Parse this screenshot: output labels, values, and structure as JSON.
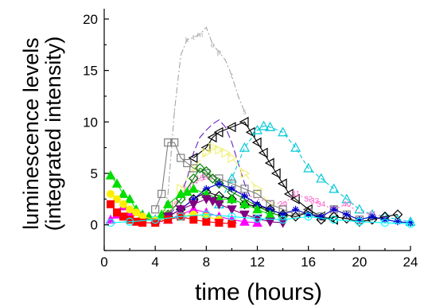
{
  "chart_data": {
    "type": "line",
    "xlabel": "time (hours)",
    "ylabel_lines": [
      "luminescence levels",
      "(integrated intensity)"
    ],
    "xlim": [
      0,
      24
    ],
    "ylim": [
      -2.5,
      21
    ],
    "xticks": [
      0,
      4,
      8,
      12,
      16,
      20,
      24
    ],
    "yticks": [
      0,
      5,
      10,
      15,
      20
    ],
    "grid": false,
    "legend": "none",
    "series": [
      {
        "color": "#a6a6a6",
        "marker": "letter",
        "dash": "8,3,2,3",
        "x": [
          4.5,
          5.0,
          5.5,
          6.0,
          6.5,
          7.0,
          7.5,
          8.0,
          8.5,
          9.0,
          9.5,
          10.0,
          10.5,
          11.0
        ],
        "y": [
          0.5,
          3.0,
          11.0,
          16.5,
          18.0,
          18.2,
          18.5,
          19.2,
          17.5,
          16.8,
          16.0,
          14.5,
          12.5,
          11.0
        ],
        "labels": [
          "",
          "",
          "l",
          "",
          "k",
          "t",
          "m",
          "",
          "o",
          "p",
          "",
          "r",
          "",
          "s"
        ]
      },
      {
        "color": "#6a1fc2",
        "marker": "",
        "dash": "9,4",
        "x": [
          4.5,
          5.5,
          6.5,
          7.0,
          7.5,
          8.0,
          8.5,
          9.0,
          9.5,
          10.0,
          10.5,
          11.0,
          11.5,
          12.0
        ],
        "y": [
          0.3,
          1.5,
          4.5,
          7.0,
          8.5,
          9.2,
          9.8,
          10.2,
          9.5,
          8.0,
          6.0,
          4.0,
          2.5,
          1.5
        ]
      },
      {
        "color": "#000000",
        "marker": "triangle-left",
        "dash": "",
        "x": [
          7.0,
          8.0,
          8.5,
          9.0,
          10.0,
          11.0,
          11.5,
          12.0,
          12.5,
          13.0,
          13.5,
          14.0,
          14.5,
          15.0,
          16.0,
          17.0,
          18.0
        ],
        "y": [
          6.5,
          7.5,
          8.5,
          9.0,
          9.5,
          10.0,
          9.0,
          8.0,
          7.0,
          6.0,
          5.0,
          4.0,
          3.0,
          2.5,
          1.5,
          0.8,
          0.5
        ]
      },
      {
        "color": "#00c8d7",
        "marker": "triangle-up",
        "dash": "5,3",
        "x": [
          9.0,
          10.0,
          11.0,
          12.0,
          12.5,
          13.0,
          14.0,
          15.0,
          16.0,
          17.0,
          18.0,
          19.0,
          20.0,
          21.0,
          22.0,
          23.0,
          24.0
        ],
        "y": [
          2.0,
          4.5,
          7.5,
          9.2,
          9.6,
          9.5,
          9.0,
          7.5,
          5.5,
          4.5,
          3.5,
          2.5,
          1.5,
          1.0,
          0.8,
          0.5,
          0.3
        ]
      },
      {
        "color": "#f0f07a",
        "marker": "triangle-right",
        "dash": "8,4",
        "x": [
          5.0,
          6.0,
          7.0,
          8.0,
          8.5,
          9.0,
          9.5,
          10.0,
          11.0,
          12.0,
          13.0
        ],
        "y": [
          1.0,
          3.5,
          5.5,
          7.0,
          7.5,
          7.3,
          7.0,
          6.5,
          5.0,
          3.5,
          2.0
        ]
      },
      {
        "color": "#ff66cc",
        "marker": "number",
        "dash": "2,3",
        "x": [
          5.0,
          5.5,
          6.0,
          6.5,
          7.0,
          7.5,
          8.0,
          8.5,
          9.0,
          10.0,
          11.0,
          12.0,
          14.0,
          15.0,
          16.0,
          16.5,
          17.0,
          18.0,
          19.0,
          20.0,
          21.0,
          22.0
        ],
        "y": [
          1.0,
          2.0,
          2.8,
          3.5,
          4.2,
          4.5,
          4.6,
          4.4,
          4.0,
          3.5,
          3.0,
          2.5,
          2.0,
          3.0,
          2.5,
          2.3,
          2.0,
          1.5,
          2.0,
          1.2,
          1.0,
          0.8
        ],
        "labels": [
          "",
          "12",
          "",
          "13",
          "14",
          "15",
          "16",
          "",
          "",
          "",
          "",
          "",
          "29",
          "31",
          "32",
          "33",
          "34",
          "35",
          "40",
          "",
          "41",
          ""
        ]
      },
      {
        "color": "#808080",
        "marker": "square",
        "dash": "",
        "x": [
          4.0,
          4.5,
          5.0,
          5.5,
          6.0,
          6.5,
          7.0,
          8.0,
          9.0,
          10.0,
          11.0,
          12.0,
          13.0,
          14.0,
          15.0,
          16.0,
          17.0,
          18.0,
          19.0,
          20.0
        ],
        "y": [
          1.5,
          3.0,
          8.0,
          8.0,
          6.5,
          6.0,
          5.5,
          5.0,
          4.5,
          4.0,
          3.5,
          3.0,
          2.0,
          1.5,
          1.0,
          1.2,
          0.8,
          1.5,
          1.0,
          0.5
        ]
      },
      {
        "color": "#008000",
        "marker": "diamond",
        "dash": "",
        "x": [
          5.0,
          6.0,
          7.0,
          7.5,
          8.0,
          8.5,
          9.0,
          10.0,
          11.0,
          12.0,
          13.0,
          14.0
        ],
        "y": [
          1.0,
          2.5,
          4.5,
          5.5,
          5.2,
          4.5,
          4.0,
          3.2,
          2.5,
          1.8,
          1.2,
          0.8
        ]
      },
      {
        "color": "#000000",
        "marker": "diamond",
        "dash": "",
        "x": [
          5.0,
          6.0,
          7.0,
          8.0,
          9.0,
          10.0,
          11.0,
          12.0,
          13.0,
          14.0,
          15.0,
          16.0,
          17.0,
          18.0,
          19.0,
          20.0,
          21.0,
          22.0,
          23.0
        ],
        "y": [
          0.8,
          1.5,
          2.5,
          3.2,
          2.8,
          2.5,
          2.0,
          1.8,
          1.5,
          1.0,
          0.8,
          1.2,
          0.5,
          0.8,
          0.6,
          0.3,
          0.5,
          0.8,
          1.0
        ]
      },
      {
        "color": "#0000cc",
        "marker": "star",
        "dash": "",
        "x": [
          4.0,
          5.0,
          6.0,
          7.0,
          8.0,
          9.0,
          10.0,
          11.0,
          12.0,
          13.0,
          14.0,
          15.0,
          16.0,
          17.0,
          18.0,
          19.0,
          20.0,
          21.0,
          22.0,
          23.0,
          24.0
        ],
        "y": [
          0.2,
          0.8,
          1.5,
          2.5,
          3.5,
          4.0,
          3.5,
          2.8,
          2.0,
          1.5,
          1.0,
          1.5,
          1.0,
          0.8,
          1.5,
          1.0,
          0.5,
          0.8,
          0.5,
          0.3,
          0.2
        ]
      },
      {
        "color": "#00dd00",
        "marker": "triangle-up-filled",
        "dash": "",
        "x": [
          0.5,
          1.0,
          1.5,
          2.0,
          2.5,
          3.0,
          3.5,
          4.0,
          4.5,
          5.0,
          6.0,
          6.5,
          7.0,
          8.0,
          9.0,
          10.0,
          11.0,
          12.0,
          13.0
        ],
        "y": [
          4.8,
          4.0,
          3.0,
          2.5,
          1.5,
          1.0,
          0.8,
          0.5,
          1.0,
          2.0,
          3.0,
          3.2,
          3.5,
          3.0,
          2.5,
          2.5,
          2.0,
          1.5,
          1.0
        ]
      },
      {
        "color": "#ff00ff",
        "marker": "triangle-up-filled",
        "dash": "",
        "x": [
          0.5,
          1.0,
          1.5,
          2.0,
          3.0,
          4.0,
          5.0,
          6.0,
          7.0,
          8.0,
          9.0,
          10.0,
          11.0,
          12.0
        ],
        "y": [
          0.5,
          1.0,
          1.8,
          1.2,
          0.8,
          0.5,
          0.5,
          1.0,
          1.5,
          1.2,
          0.8,
          0.5,
          0.3,
          0.2
        ]
      },
      {
        "color": "#800080",
        "marker": "triangle-down-filled",
        "dash": "",
        "x": [
          5.0,
          6.0,
          7.0,
          8.0,
          8.5,
          9.0,
          10.0,
          11.0,
          12.0,
          13.0,
          14.0
        ],
        "y": [
          0.8,
          1.5,
          2.0,
          2.5,
          2.3,
          2.0,
          1.5,
          1.0,
          0.6,
          0.3,
          0.2
        ]
      },
      {
        "color": "#ffee00",
        "marker": "circle-filled",
        "dash": "",
        "x": [
          0.5,
          1.0,
          1.5,
          2.0,
          2.5,
          3.0,
          4.0,
          5.0,
          6.0,
          7.0,
          8.0,
          9.0
        ],
        "y": [
          3.0,
          2.5,
          2.0,
          1.5,
          1.2,
          0.8,
          0.5,
          0.5,
          0.8,
          1.0,
          0.8,
          0.5
        ]
      },
      {
        "color": "#ff0000",
        "marker": "square-filled",
        "dash": "",
        "x": [
          0.5,
          1.0,
          1.5,
          2.0,
          2.5,
          3.0,
          4.0,
          5.0,
          6.0,
          7.0,
          8.0,
          9.0,
          10.0
        ],
        "y": [
          2.0,
          1.2,
          0.8,
          0.5,
          0.3,
          0.2,
          0.2,
          0.5,
          0.8,
          0.5,
          0.3,
          0.2,
          0.1
        ]
      },
      {
        "color": "#00ffff",
        "marker": "circle",
        "dash": "",
        "x": [
          0.5,
          2.0,
          4.0,
          6.0,
          8.0,
          10.0,
          12.0,
          14.0,
          16.0,
          18.0,
          20.0,
          22.0,
          24.0
        ],
        "y": [
          0.2,
          0.3,
          0.5,
          0.8,
          1.0,
          0.8,
          0.6,
          0.5,
          0.8,
          0.5,
          0.3,
          0.2,
          0.1
        ]
      }
    ]
  }
}
